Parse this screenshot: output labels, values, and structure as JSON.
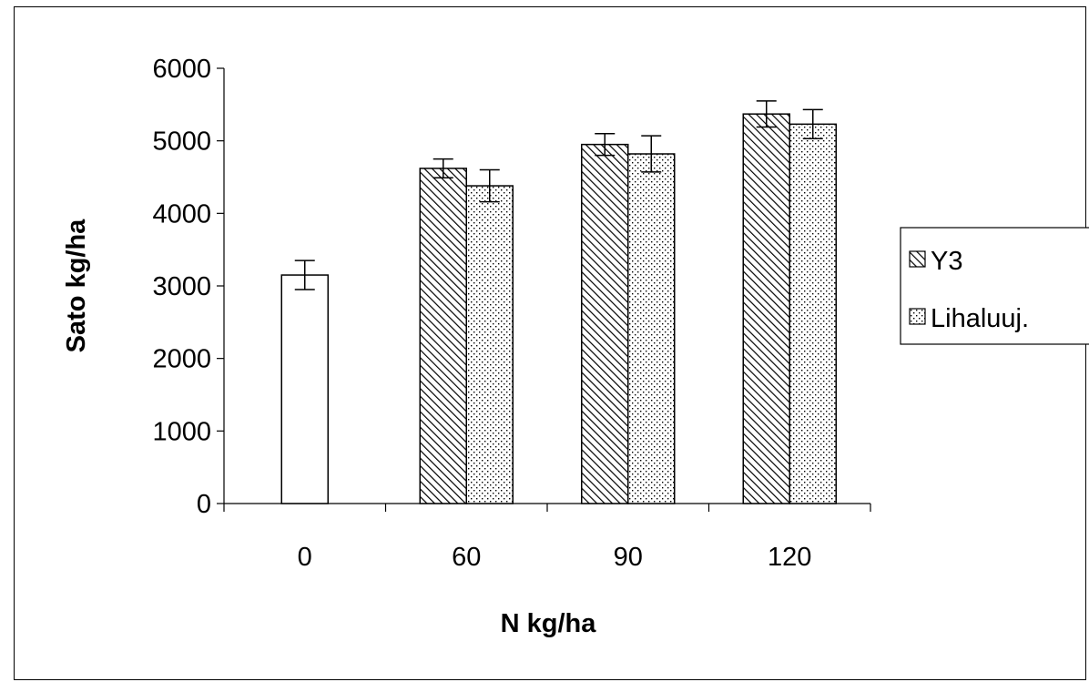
{
  "chart_data": {
    "type": "bar",
    "title": "",
    "xlabel": "N kg/ha",
    "ylabel": "Sato kg/ha",
    "ylim": [
      0,
      6000
    ],
    "yticks": [
      0,
      1000,
      2000,
      3000,
      4000,
      5000,
      6000
    ],
    "categories": [
      "0",
      "60",
      "90",
      "120"
    ],
    "control": {
      "category": "0",
      "value": 3150,
      "error": 200,
      "color": "#ffffff"
    },
    "series": [
      {
        "name": "Y3",
        "pattern": "diagonal-hatch",
        "values": [
          null,
          4620,
          4950,
          5370
        ],
        "errors": [
          null,
          130,
          150,
          180
        ]
      },
      {
        "name": "Lihaluuj.",
        "pattern": "dots",
        "values": [
          null,
          4380,
          4820,
          5230
        ],
        "errors": [
          null,
          220,
          250,
          200
        ]
      }
    ],
    "legend_position": "right",
    "grid": false
  }
}
